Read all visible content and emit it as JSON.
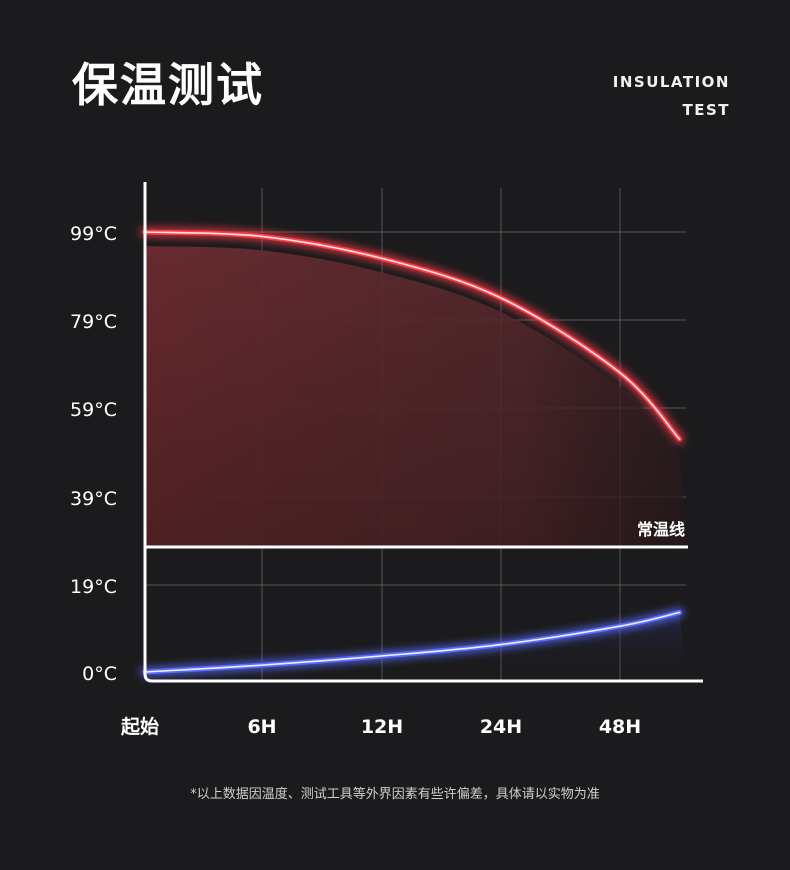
{
  "header": {
    "title": "保温测试",
    "subtitle_line1": "INSULATION",
    "subtitle_line2": "TEST"
  },
  "footnote": "*以上数据因温度、测试工具等外界因素有些许偏差，具体请以实物为准",
  "colors": {
    "background": "#1b1b1d",
    "hot_line": "#ff3b47",
    "cold_line": "#5a6cff",
    "area_fill": "#6b2b30",
    "grid": "#6a6a6a",
    "text": "#ffffff"
  },
  "chart_data": {
    "type": "line",
    "x_ticks": [
      "起始",
      "6H",
      "12H",
      "24H",
      "48H"
    ],
    "y_ticks": [
      "99°C",
      "79°C",
      "59°C",
      "39°C",
      "19°C",
      "0°C"
    ],
    "y_tick_values": [
      99,
      79,
      59,
      39,
      19,
      0
    ],
    "room_temp_label": "常温线",
    "room_temp_value": 28,
    "grid": true,
    "series": [
      {
        "key": "hot",
        "x": [
          0,
          1,
          2,
          3,
          4,
          4.5
        ],
        "values": [
          99,
          98,
          93,
          84,
          67,
          52
        ]
      },
      {
        "key": "cold",
        "x": [
          0,
          1,
          2,
          3,
          4,
          4.5
        ],
        "values": [
          0,
          1.5,
          3.5,
          6,
          10,
          13
        ]
      }
    ]
  }
}
